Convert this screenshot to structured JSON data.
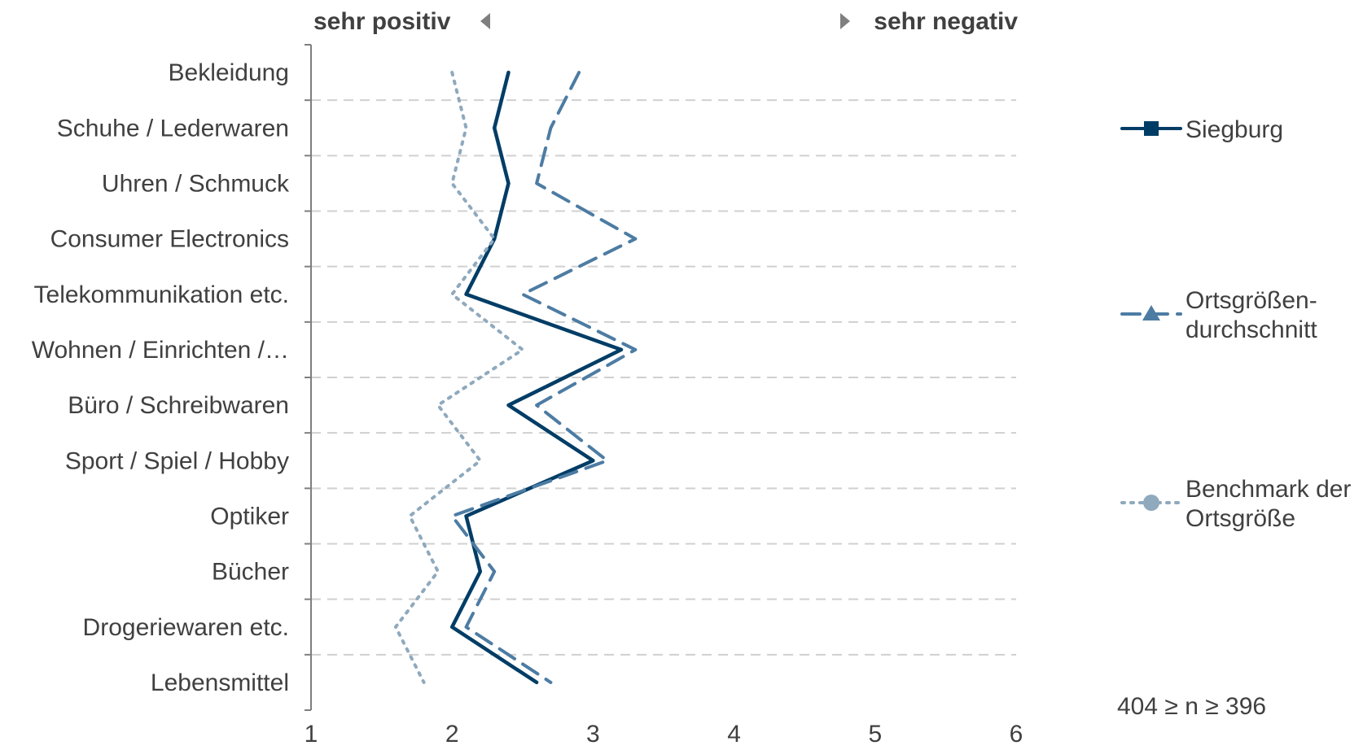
{
  "chart_data": {
    "type": "line",
    "orientation": "vertical-categories",
    "categories": [
      "Bekleidung",
      "Schuhe / Lederwaren",
      "Uhren / Schmuck",
      "Consumer Electronics",
      "Telekommunikation etc.",
      "Wohnen / Einrichten /…",
      "Büro / Schreibwaren",
      "Sport / Spiel / Hobby",
      "Optiker",
      "Bücher",
      "Drogeriewaren etc.",
      "Lebensmittel"
    ],
    "series": [
      {
        "name": "Siegburg",
        "style": "solid",
        "color": "#003d66",
        "values": [
          2.4,
          2.3,
          2.4,
          2.3,
          2.1,
          3.2,
          2.4,
          3.0,
          2.1,
          2.2,
          2.0,
          2.6
        ]
      },
      {
        "name": "Ortsgrößen-\ndurchschnitt",
        "style": "dashed",
        "color": "#4d7ca3",
        "values": [
          2.9,
          2.7,
          2.6,
          3.3,
          2.5,
          3.3,
          2.6,
          3.1,
          2.0,
          2.3,
          2.1,
          2.7
        ]
      },
      {
        "name": "Benchmark der\nOrtsgröße",
        "style": "dotted",
        "color": "#8fa9bd",
        "values": [
          2.0,
          2.1,
          2.0,
          2.3,
          2.0,
          2.5,
          1.9,
          2.2,
          1.7,
          1.9,
          1.6,
          1.8
        ]
      }
    ],
    "xlim": [
      1,
      6
    ],
    "xticks": [
      "1",
      "2",
      "3",
      "4",
      "5",
      "6"
    ],
    "grid": true,
    "left_direction_label": "sehr positiv",
    "right_direction_label": "sehr negativ",
    "legend_position": "right",
    "note": "404 ≥ n ≥ 396"
  }
}
